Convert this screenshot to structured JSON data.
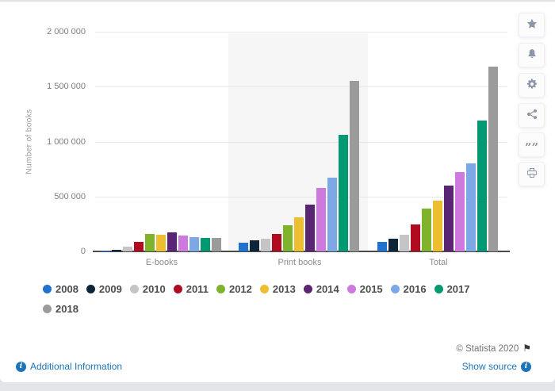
{
  "chart": {
    "ylabel": "Number of books",
    "y_tick_labels": [
      "2 000 000",
      "1 500 000",
      "1 000 000",
      "500 000",
      "0"
    ],
    "categories": [
      "E-books",
      "Print books",
      "Total"
    ]
  },
  "chart_data": {
    "type": "bar",
    "categories": [
      "E-books",
      "Print books",
      "Total"
    ],
    "series": [
      {
        "name": "2008",
        "color": "#2072ce",
        "values": [
          10000,
          78000,
          85000
        ]
      },
      {
        "name": "2009",
        "color": "#0e2439",
        "values": [
          15000,
          102000,
          117000
        ]
      },
      {
        "name": "2010",
        "color": "#c5c5c7",
        "values": [
          42000,
          115000,
          153000
        ]
      },
      {
        "name": "2011",
        "color": "#b00b1f",
        "values": [
          87000,
          162000,
          247000
        ]
      },
      {
        "name": "2012",
        "color": "#7fb32b",
        "values": [
          161000,
          235000,
          392000
        ]
      },
      {
        "name": "2013",
        "color": "#edbe2f",
        "values": [
          152000,
          308000,
          459000
        ]
      },
      {
        "name": "2014",
        "color": "#5a2572",
        "values": [
          176000,
          424000,
          600000
        ]
      },
      {
        "name": "2015",
        "color": "#ce79de",
        "values": [
          148000,
          575000,
          725000
        ]
      },
      {
        "name": "2016",
        "color": "#7ca9e6",
        "values": [
          131000,
          668000,
          800000
        ]
      },
      {
        "name": "2017",
        "color": "#009972",
        "values": [
          120000,
          1060000,
          1190000
        ]
      },
      {
        "name": "2018",
        "color": "#9b9b9b",
        "values": [
          126000,
          1550000,
          1680000
        ]
      }
    ],
    "title": "",
    "xlabel": "",
    "ylabel": "Number of books",
    "ylim": [
      0,
      2000000
    ],
    "grid": true,
    "legend_position": "bottom",
    "highlighted_category": "Print books"
  },
  "toolbar": {
    "icons": [
      "star-icon",
      "bell-icon",
      "gear-icon",
      "share-icon",
      "cite-icon",
      "print-icon"
    ],
    "cite_glyph": "””"
  },
  "footer": {
    "copyright": "© Statista 2020",
    "flag_glyph": "⚑",
    "info_glyph": "i",
    "additional_information_label": "Additional Information",
    "show_source_label": "Show source"
  }
}
